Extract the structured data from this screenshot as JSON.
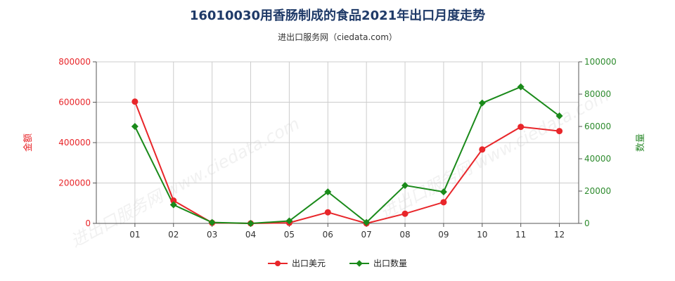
{
  "title": "16010030用香肠制成的食品2021年出口月度走势",
  "subtitle": "进出口服务网（ciedata.com）",
  "watermark": "进出口服务网 www.ciedata.com",
  "colors": {
    "left_axis": "#e8262a",
    "right_axis": "#2e8b2e",
    "series_value": "#e8262a",
    "series_qty": "#1a8a1a",
    "grid": "#cccccc"
  },
  "chart_data": {
    "type": "line",
    "categories": [
      "01",
      "02",
      "03",
      "04",
      "05",
      "06",
      "07",
      "08",
      "09",
      "10",
      "11",
      "12"
    ],
    "series": [
      {
        "name": "出口美元",
        "axis": "left",
        "values": [
          603000,
          113000,
          3000,
          0,
          3000,
          55000,
          0,
          48000,
          105000,
          366000,
          478000,
          457000
        ]
      },
      {
        "name": "出口数量",
        "axis": "right",
        "values": [
          60000,
          11500,
          600,
          0,
          1500,
          19500,
          600,
          23500,
          19500,
          74500,
          84500,
          66500
        ]
      }
    ],
    "y_left": {
      "label": "金额",
      "min": 0,
      "max": 800000,
      "ticks": [
        0,
        200000,
        400000,
        600000,
        800000
      ]
    },
    "y_right": {
      "label": "数量",
      "min": 0,
      "max": 100000,
      "ticks": [
        0,
        20000,
        40000,
        60000,
        80000,
        100000
      ]
    },
    "grid": true,
    "legend_position": "bottom-center"
  }
}
